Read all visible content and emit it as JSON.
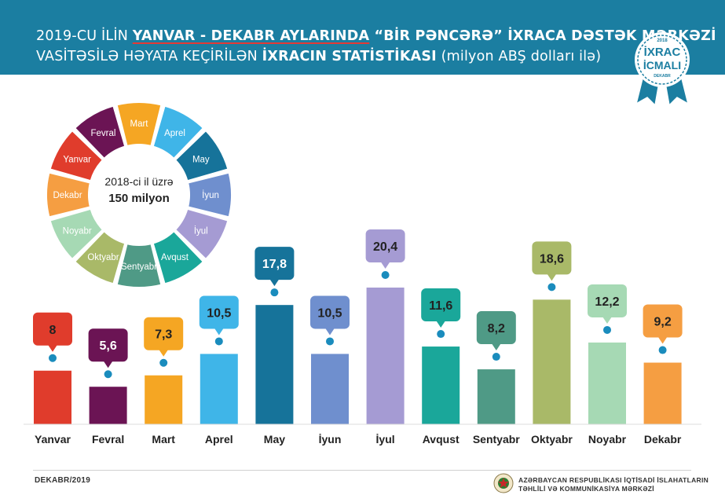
{
  "header": {
    "title_line1_a": "2019-CU İLİN ",
    "title_line1_b": "YANVAR - DEKABR AYLARINDA",
    "title_line1_c": " “BİR PƏNCƏRƏ” İXRACA DƏSTƏK MƏRKƏZİ",
    "title_line2_a": "VASİTƏSİLƏ HƏYATA KEÇİRİLƏN ",
    "title_line2_b": "İXRACIN STATİSTİKASI",
    "title_line2_c": " (milyon ABŞ dolları ilə)"
  },
  "badge": {
    "year": "2018",
    "line1": "İXRAC",
    "line2": "İCMALI",
    "month": "DEKABR"
  },
  "summary": {
    "line1": "2018-ci il üzrə",
    "line2": "150 milyon"
  },
  "footer": {
    "left": "DEKABR/2019",
    "org_line1": "AZƏRBAYCAN RESPUBLİKASI İQTİSADİ İSLAHATLARIN",
    "org_line2": "TƏHLİLİ VƏ KOMMUNİKASİYA MƏRKƏZİ"
  },
  "chart_data": {
    "type": "bar",
    "categories": [
      "Yanvar",
      "Fevral",
      "Mart",
      "Aprel",
      "May",
      "İyun",
      "İyul",
      "Avqust",
      "Sentyabr",
      "Oktyabr",
      "Noyabr",
      "Dekabr"
    ],
    "values": [
      8,
      5.6,
      7.3,
      10.5,
      17.8,
      10.5,
      20.4,
      11.6,
      8.2,
      18.6,
      12.2,
      9.2
    ],
    "value_labels": [
      "8",
      "5,6",
      "7,3",
      "10,5",
      "17,8",
      "10,5",
      "20,4",
      "11,6",
      "8,2",
      "18,6",
      "12,2",
      "9,2"
    ],
    "colors": [
      "#e03c2c",
      "#6b1454",
      "#f5a623",
      "#3fb5e8",
      "#16739a",
      "#6f8fce",
      "#a59bd3",
      "#1aa79a",
      "#4f9a86",
      "#a9b968",
      "#a6d9b4",
      "#f59e42"
    ],
    "ring_order": [
      "Mart",
      "Aprel",
      "May",
      "İyun",
      "İyul",
      "Avqust",
      "Sentyabr",
      "Oktyabr",
      "Noyabr",
      "Dekabr",
      "Yanvar",
      "Fevral"
    ],
    "ring_colors": [
      "#f5a623",
      "#3fb5e8",
      "#16739a",
      "#6f8fce",
      "#a59bd3",
      "#1aa79a",
      "#4f9a86",
      "#a9b968",
      "#a6d9b4",
      "#f59e42",
      "#e03c2c",
      "#6b1454"
    ],
    "dot_color": "#1a8cbd",
    "title": "",
    "xlabel": "",
    "ylabel": "",
    "ylim": [
      0,
      20.4
    ]
  }
}
